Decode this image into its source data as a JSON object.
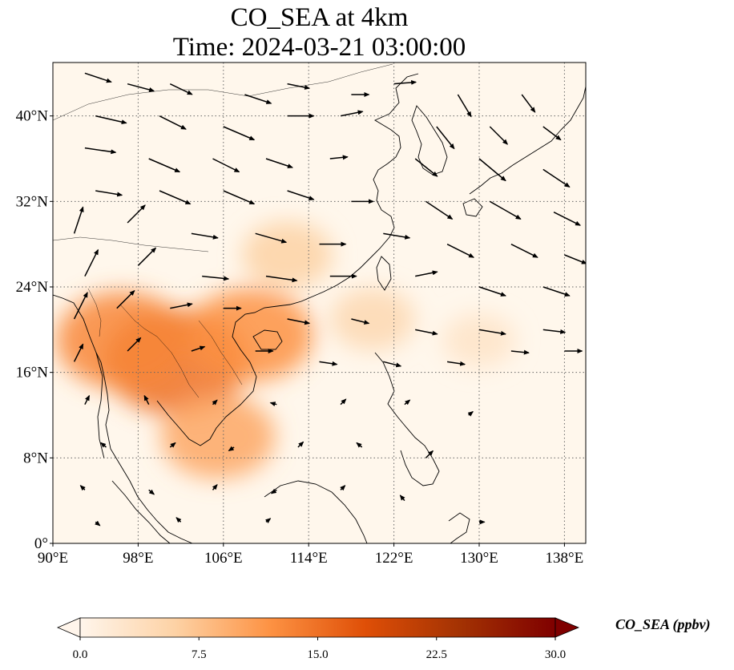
{
  "title_line1": "CO_SEA at 4km",
  "title_line2": "Time: 2024-03-21 03:00:00",
  "map": {
    "lon_range": [
      90,
      140
    ],
    "lat_range": [
      0,
      45
    ],
    "lon_ticks": [
      {
        "value": 90,
        "label": "90°E"
      },
      {
        "value": 98,
        "label": "98°E"
      },
      {
        "value": 106,
        "label": "106°E"
      },
      {
        "value": 114,
        "label": "114°E"
      },
      {
        "value": 122,
        "label": "122°E"
      },
      {
        "value": 130,
        "label": "130°E"
      },
      {
        "value": 138,
        "label": "138°E"
      }
    ],
    "lat_ticks": [
      {
        "value": 0,
        "label": "0°"
      },
      {
        "value": 8,
        "label": "8°N"
      },
      {
        "value": 16,
        "label": "16°N"
      },
      {
        "value": 24,
        "label": "24°N"
      },
      {
        "value": 32,
        "label": "32°N"
      },
      {
        "value": 40,
        "label": "40°N"
      }
    ],
    "gridlines": true,
    "concentration_hotspots": [
      {
        "lon": 101.5,
        "lat": 17.0,
        "value": 15
      },
      {
        "lon": 96.5,
        "lat": 19.0,
        "value": 13
      },
      {
        "lon": 108.5,
        "lat": 19.5,
        "value": 12
      },
      {
        "lon": 105.5,
        "lat": 10.0,
        "value": 10
      },
      {
        "lon": 112.0,
        "lat": 27.0,
        "value": 6
      },
      {
        "lon": 120.0,
        "lat": 21.0,
        "value": 5
      },
      {
        "lon": 130.0,
        "lat": 19.0,
        "value": 3
      }
    ],
    "wind_vectors": [
      {
        "lon": 93,
        "lat": 44,
        "u": 3,
        "v": -1
      },
      {
        "lon": 97,
        "lat": 43,
        "u": 3,
        "v": -0.8
      },
      {
        "lon": 101,
        "lat": 43,
        "u": 2.5,
        "v": -1.2
      },
      {
        "lon": 108,
        "lat": 42,
        "u": 3,
        "v": -1
      },
      {
        "lon": 112,
        "lat": 43,
        "u": 2.5,
        "v": -0.5
      },
      {
        "lon": 118,
        "lat": 42,
        "u": 2,
        "v": 0
      },
      {
        "lon": 122,
        "lat": 43,
        "u": 2.5,
        "v": 0.2
      },
      {
        "lon": 128,
        "lat": 42,
        "u": 1.5,
        "v": -2.5
      },
      {
        "lon": 134,
        "lat": 42,
        "u": 1.5,
        "v": -2
      },
      {
        "lon": 94,
        "lat": 40,
        "u": 3.5,
        "v": -0.8
      },
      {
        "lon": 100,
        "lat": 40,
        "u": 3,
        "v": -1.5
      },
      {
        "lon": 106,
        "lat": 39,
        "u": 3.5,
        "v": -1.5
      },
      {
        "lon": 112,
        "lat": 40,
        "u": 3,
        "v": 0
      },
      {
        "lon": 117,
        "lat": 40,
        "u": 2.5,
        "v": 0.5
      },
      {
        "lon": 126,
        "lat": 39,
        "u": 2,
        "v": -2.5
      },
      {
        "lon": 131,
        "lat": 39,
        "u": 2,
        "v": -2
      },
      {
        "lon": 136,
        "lat": 39,
        "u": 2,
        "v": -1.5
      },
      {
        "lon": 93,
        "lat": 37,
        "u": 3.5,
        "v": -0.5
      },
      {
        "lon": 99,
        "lat": 36,
        "u": 3.5,
        "v": -1.5
      },
      {
        "lon": 105,
        "lat": 36,
        "u": 3,
        "v": -1.5
      },
      {
        "lon": 110,
        "lat": 36,
        "u": 3,
        "v": -1
      },
      {
        "lon": 116,
        "lat": 36,
        "u": 2,
        "v": 0.2
      },
      {
        "lon": 124,
        "lat": 36,
        "u": 2.5,
        "v": -2
      },
      {
        "lon": 130,
        "lat": 36,
        "u": 3,
        "v": -2.5
      },
      {
        "lon": 136,
        "lat": 35,
        "u": 3,
        "v": -2
      },
      {
        "lon": 94,
        "lat": 33,
        "u": 3,
        "v": -0.5
      },
      {
        "lon": 100,
        "lat": 33,
        "u": 3.5,
        "v": -1.5
      },
      {
        "lon": 106,
        "lat": 33,
        "u": 3.5,
        "v": -1.5
      },
      {
        "lon": 112,
        "lat": 33,
        "u": 3,
        "v": -1
      },
      {
        "lon": 118,
        "lat": 32,
        "u": 2.5,
        "v": 0
      },
      {
        "lon": 125,
        "lat": 32,
        "u": 3,
        "v": -2
      },
      {
        "lon": 131,
        "lat": 32,
        "u": 3.5,
        "v": -2
      },
      {
        "lon": 137,
        "lat": 31,
        "u": 3,
        "v": -1.5
      },
      {
        "lon": 92,
        "lat": 29,
        "u": 1,
        "v": 3
      },
      {
        "lon": 97,
        "lat": 30,
        "u": 2,
        "v": 2
      },
      {
        "lon": 103,
        "lat": 29,
        "u": 3,
        "v": -0.5
      },
      {
        "lon": 109,
        "lat": 29,
        "u": 3.5,
        "v": -1
      },
      {
        "lon": 115,
        "lat": 28,
        "u": 3,
        "v": 0
      },
      {
        "lon": 121,
        "lat": 29,
        "u": 3,
        "v": -0.5
      },
      {
        "lon": 127,
        "lat": 28,
        "u": 3,
        "v": -1.5
      },
      {
        "lon": 133,
        "lat": 28,
        "u": 3,
        "v": -1.5
      },
      {
        "lon": 138,
        "lat": 27,
        "u": 2.5,
        "v": -1
      },
      {
        "lon": 93,
        "lat": 25,
        "u": 1.5,
        "v": 3
      },
      {
        "lon": 98,
        "lat": 26,
        "u": 2,
        "v": 2
      },
      {
        "lon": 104,
        "lat": 25,
        "u": 3,
        "v": -0.3
      },
      {
        "lon": 110,
        "lat": 25,
        "u": 3.5,
        "v": -0.5
      },
      {
        "lon": 116,
        "lat": 25,
        "u": 3,
        "v": 0
      },
      {
        "lon": 124,
        "lat": 25,
        "u": 2.5,
        "v": 0.5
      },
      {
        "lon": 130,
        "lat": 24,
        "u": 3,
        "v": -1
      },
      {
        "lon": 136,
        "lat": 24,
        "u": 3,
        "v": -1
      },
      {
        "lon": 92,
        "lat": 21,
        "u": 1.5,
        "v": 3
      },
      {
        "lon": 96,
        "lat": 22,
        "u": 2,
        "v": 2
      },
      {
        "lon": 101,
        "lat": 22,
        "u": 2.5,
        "v": 0.5
      },
      {
        "lon": 106,
        "lat": 22,
        "u": 2,
        "v": 0
      },
      {
        "lon": 112,
        "lat": 21,
        "u": 2.5,
        "v": -0.5
      },
      {
        "lon": 118,
        "lat": 21,
        "u": 2,
        "v": -0.5
      },
      {
        "lon": 124,
        "lat": 20,
        "u": 2.5,
        "v": -0.5
      },
      {
        "lon": 130,
        "lat": 20,
        "u": 3,
        "v": -0.5
      },
      {
        "lon": 136,
        "lat": 20,
        "u": 2.5,
        "v": -0.3
      },
      {
        "lon": 92,
        "lat": 17,
        "u": 1,
        "v": 2
      },
      {
        "lon": 97,
        "lat": 18,
        "u": 1.5,
        "v": 1.5
      },
      {
        "lon": 103,
        "lat": 18,
        "u": 1.5,
        "v": 0.5
      },
      {
        "lon": 109,
        "lat": 18,
        "u": 2,
        "v": 0
      },
      {
        "lon": 115,
        "lat": 17,
        "u": 2,
        "v": -0.3
      },
      {
        "lon": 121,
        "lat": 17,
        "u": 2,
        "v": -0.5
      },
      {
        "lon": 127,
        "lat": 17,
        "u": 2,
        "v": -0.3
      },
      {
        "lon": 133,
        "lat": 18,
        "u": 2,
        "v": -0.2
      },
      {
        "lon": 138,
        "lat": 18,
        "u": 2,
        "v": 0
      },
      {
        "lon": 93,
        "lat": 13,
        "u": 0.5,
        "v": 1
      },
      {
        "lon": 99,
        "lat": 13,
        "u": -0.5,
        "v": 1
      },
      {
        "lon": 105,
        "lat": 13,
        "u": 0.5,
        "v": 0.5
      },
      {
        "lon": 111,
        "lat": 13,
        "u": -0.7,
        "v": 0.2
      },
      {
        "lon": 117,
        "lat": 13,
        "u": 0.6,
        "v": 0.6
      },
      {
        "lon": 123,
        "lat": 13,
        "u": 0.6,
        "v": 0.5
      },
      {
        "lon": 129,
        "lat": 12,
        "u": 0.5,
        "v": 0.4
      },
      {
        "lon": 95,
        "lat": 9,
        "u": -0.6,
        "v": 0.5
      },
      {
        "lon": 101,
        "lat": 9,
        "u": 0.6,
        "v": 0.5
      },
      {
        "lon": 107,
        "lat": 9,
        "u": -0.6,
        "v": -0.4
      },
      {
        "lon": 113,
        "lat": 9,
        "u": 0.6,
        "v": 0.6
      },
      {
        "lon": 119,
        "lat": 9,
        "u": -0.6,
        "v": 0.5
      },
      {
        "lon": 125,
        "lat": 8,
        "u": 0.8,
        "v": 0.8
      },
      {
        "lon": 93,
        "lat": 5,
        "u": -0.5,
        "v": 0.5
      },
      {
        "lon": 99,
        "lat": 5,
        "u": 0.6,
        "v": -0.5
      },
      {
        "lon": 105,
        "lat": 5,
        "u": 0.5,
        "v": 0.6
      },
      {
        "lon": 111,
        "lat": 5,
        "u": -0.6,
        "v": -0.4
      },
      {
        "lon": 117,
        "lat": 5,
        "u": 0.5,
        "v": 0.5
      },
      {
        "lon": 123,
        "lat": 4,
        "u": -0.5,
        "v": 0.6
      },
      {
        "lon": 94,
        "lat": 2,
        "u": 0.5,
        "v": -0.4
      },
      {
        "lon": 102,
        "lat": 2,
        "u": -0.5,
        "v": 0.5
      },
      {
        "lon": 110,
        "lat": 2,
        "u": 0.5,
        "v": 0.4
      },
      {
        "lon": 130,
        "lat": 2,
        "u": 0.6,
        "v": 0
      }
    ]
  },
  "colorbar": {
    "label": "CO_SEA (ppbv)",
    "min": 0.0,
    "max": 30.0,
    "ticks": [
      {
        "value": 0.0,
        "label": "0.0"
      },
      {
        "value": 7.5,
        "label": "7.5"
      },
      {
        "value": 15.0,
        "label": "15.0"
      },
      {
        "value": 22.5,
        "label": "22.5"
      },
      {
        "value": 30.0,
        "label": "30.0"
      }
    ],
    "colors": [
      "#fff5eb",
      "#fdd2a5",
      "#fd9243",
      "#df4f07",
      "#a33203",
      "#7f0000"
    ]
  }
}
